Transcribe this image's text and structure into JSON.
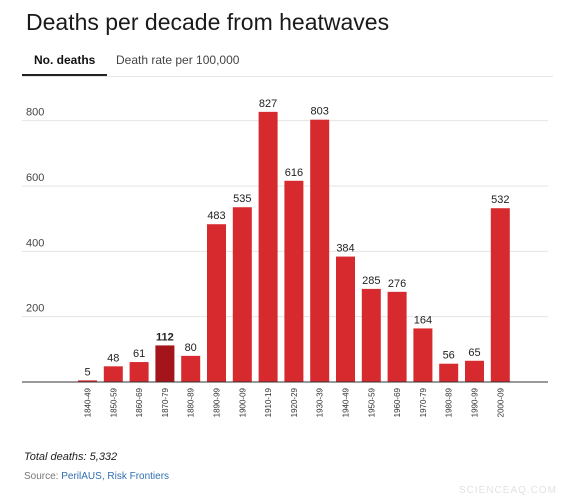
{
  "header": {
    "title": "Deaths per decade from heatwaves"
  },
  "tabs": [
    {
      "label": "No. deaths",
      "active": true
    },
    {
      "label": "Death rate per 100,000",
      "active": false
    }
  ],
  "chart_data": {
    "type": "bar",
    "title": "",
    "xlabel": "",
    "ylabel": "",
    "ylim": [
      0,
      900
    ],
    "yticks": [
      200,
      400,
      600,
      800
    ],
    "grid": true,
    "categories": [
      "1840-49",
      "1850-59",
      "1860-69",
      "1870-79",
      "1880-89",
      "1890-99",
      "1900-09",
      "1910-19",
      "1920-29",
      "1930-39",
      "1940-49",
      "1950-59",
      "1960-69",
      "1970-79",
      "1980-89",
      "1990-99",
      "2000-09"
    ],
    "values": [
      5,
      48,
      61,
      112,
      80,
      483,
      535,
      827,
      616,
      803,
      384,
      285,
      276,
      164,
      56,
      65,
      532
    ],
    "highlight_index": 3,
    "colors": {
      "bar": "#d62a2f",
      "highlight": "#a4151b",
      "grid": "#e5e5e5",
      "axis": "#333333"
    }
  },
  "footer": {
    "total_label": "Total deaths: 5,332",
    "source_prefix": "Source: ",
    "source_links": "PerilAUS, Risk Frontiers"
  },
  "watermark": "SCIENCEAQ.COM"
}
